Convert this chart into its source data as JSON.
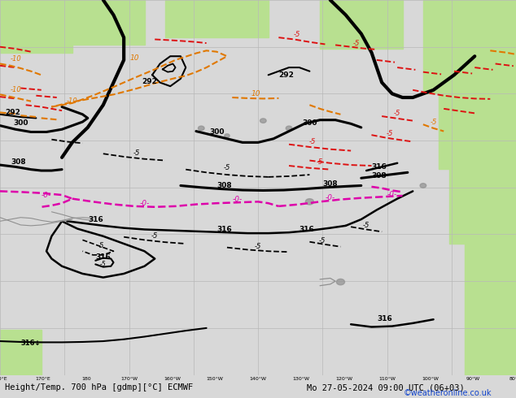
{
  "title": "Height/Temp. 700 hPa [gdmp][°C] ECMWF",
  "datetime_label": "Mo 27-05-2024 09:00 UTC (06+03)",
  "copyright": "©weatheronline.co.uk",
  "sea_color": "#d8d8d8",
  "land_color": "#b8e090",
  "coast_color": "#909090",
  "grid_color": "#b8b8b8",
  "bottom_bg": "#f0f0f0",
  "figsize": [
    6.34,
    4.9
  ],
  "dpi": 100,
  "label_fs": 7.5,
  "copy_fs": 7.0,
  "copy_color": "#1144cc"
}
